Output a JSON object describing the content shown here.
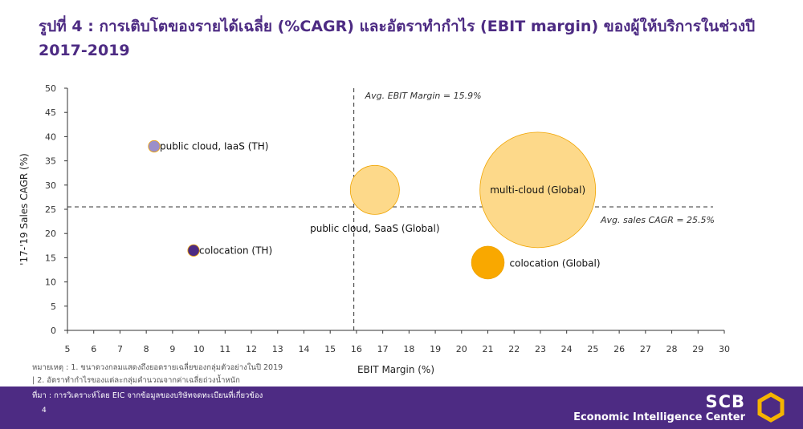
{
  "title": {
    "line1": "รูปที่ 4 : การเติบโตของรายได้เฉลี่ย (%CAGR) และอัตราทำกำไร (EBIT margin) ของผู้ให้บริการในช่วงปี",
    "line2": "2017-2019"
  },
  "notes": {
    "note1": "หมายเหตุ : 1. ขนาดวงกลมแสดงถึงยอดรายเฉลี่ยของกลุ่มตัวอย่างในปี 2019",
    "note2": "| 2. อัตราทำกำไรของแต่ละกลุ่มคำนวณจากค่าเฉลี่ยถ่วงน้ำหนัก"
  },
  "footer": {
    "source": "ที่มา : การวิเคราะห์โดย EIC จากข้อมูลของบริษัทจดทะเบียนที่เกี่ยวข้อง",
    "page_number": "4",
    "brand": "SCB",
    "brand_subtitle": "Economic Intelligence Center",
    "logo_icon": "scb-logo-icon"
  },
  "chart_data": {
    "type": "scatter",
    "subtype": "bubble",
    "xlabel": "EBIT Margin (%)",
    "ylabel": "'17-'19 Sales CAGR (%)",
    "xlim": [
      5,
      30
    ],
    "ylim": [
      0,
      50
    ],
    "xticks": [
      5,
      6,
      7,
      8,
      9,
      10,
      11,
      12,
      13,
      14,
      15,
      16,
      17,
      18,
      19,
      20,
      21,
      22,
      23,
      24,
      25,
      26,
      27,
      28,
      29,
      30
    ],
    "yticks": [
      0,
      5,
      10,
      15,
      20,
      25,
      30,
      35,
      40,
      45,
      50
    ],
    "grid": false,
    "reference_lines": [
      {
        "axis": "x",
        "value": 15.9,
        "label": "Avg. EBIT Margin = 15.9%"
      },
      {
        "axis": "y",
        "value": 25.5,
        "label": "Avg. sales CAGR = 25.5%"
      }
    ],
    "points": [
      {
        "label": "public cloud, IaaS (TH)",
        "x": 8.3,
        "y": 38,
        "size": 1,
        "color": "#9b8fc9"
      },
      {
        "label": "colocation (TH)",
        "x": 9.8,
        "y": 16.5,
        "size": 1,
        "color": "#4d2b83"
      },
      {
        "label": "public cloud, SaaS (Global)",
        "x": 16.7,
        "y": 29,
        "size": 18,
        "color": "#fdd98a"
      },
      {
        "label": "multi-cloud (Global)",
        "x": 22.9,
        "y": 29,
        "size": 100,
        "color": "#fdd98a"
      },
      {
        "label": "colocation (Global)",
        "x": 21,
        "y": 14,
        "size": 8,
        "color": "#f9a800"
      }
    ],
    "colors": {
      "axis": "#333333",
      "ref_line": "#333333"
    }
  }
}
